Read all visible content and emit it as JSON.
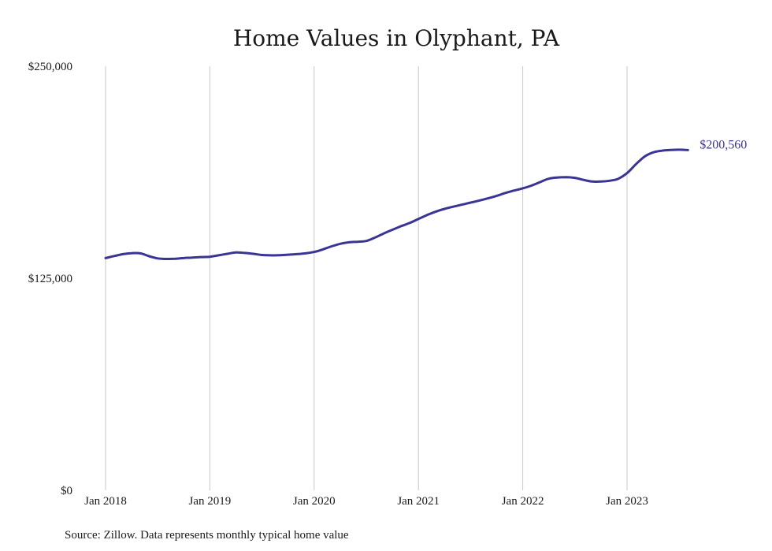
{
  "colors": {
    "line": "#3a3594",
    "grid": "#c8c8c8",
    "text": "#1a1a1a"
  },
  "chart_data": {
    "type": "line",
    "title": "Home Values in Olyphant, PA",
    "xlabel": "",
    "ylabel": "",
    "ylim": [
      0,
      250000
    ],
    "yticks": [
      0,
      125000,
      250000
    ],
    "ytick_labels": [
      "$0",
      "$125,000",
      "$250,000"
    ],
    "xticks": [
      "2018-01",
      "2019-01",
      "2020-01",
      "2021-01",
      "2022-01",
      "2023-01"
    ],
    "xtick_labels": [
      "Jan 2018",
      "Jan 2019",
      "Jan 2020",
      "Jan 2021",
      "Jan 2022",
      "Jan 2023"
    ],
    "grid": "vertical",
    "end_label": "$200,560",
    "source": "Source: Zillow. Data represents monthly typical home value",
    "series": [
      {
        "x": [
          "2018-01",
          "2018-02",
          "2018-03",
          "2018-04",
          "2018-05",
          "2018-06",
          "2018-07",
          "2018-08",
          "2018-09",
          "2018-10",
          "2018-11",
          "2018-12",
          "2019-01",
          "2019-02",
          "2019-03",
          "2019-04",
          "2019-05",
          "2019-06",
          "2019-07",
          "2019-08",
          "2019-09",
          "2019-10",
          "2019-11",
          "2019-12",
          "2020-01",
          "2020-02",
          "2020-03",
          "2020-04",
          "2020-05",
          "2020-06",
          "2020-07",
          "2020-08",
          "2020-09",
          "2020-10",
          "2020-11",
          "2020-12",
          "2021-01",
          "2021-02",
          "2021-03",
          "2021-04",
          "2021-05",
          "2021-06",
          "2021-07",
          "2021-08",
          "2021-09",
          "2021-10",
          "2021-11",
          "2021-12",
          "2022-01",
          "2022-02",
          "2022-03",
          "2022-04",
          "2022-05",
          "2022-06",
          "2022-07",
          "2022-08",
          "2022-09",
          "2022-10",
          "2022-11",
          "2022-12",
          "2023-01",
          "2023-02",
          "2023-03",
          "2023-04",
          "2023-05",
          "2023-06",
          "2023-07",
          "2023-08"
        ],
        "values": [
          136900,
          138100,
          139200,
          139800,
          139700,
          138000,
          136700,
          136400,
          136500,
          136900,
          137200,
          137500,
          137700,
          138500,
          139400,
          140200,
          139900,
          139400,
          138700,
          138500,
          138600,
          138900,
          139200,
          139700,
          140500,
          142000,
          143800,
          145300,
          146200,
          146500,
          147000,
          149000,
          151400,
          153600,
          155700,
          157600,
          160000,
          162300,
          164300,
          165900,
          167200,
          168400,
          169600,
          170800,
          172100,
          173600,
          175300,
          176700,
          178000,
          179600,
          181700,
          183700,
          184400,
          184600,
          184200,
          183000,
          182000,
          182000,
          182500,
          183700,
          187000,
          192100,
          196700,
          199200,
          200200,
          200600,
          200800,
          200560
        ]
      }
    ]
  }
}
